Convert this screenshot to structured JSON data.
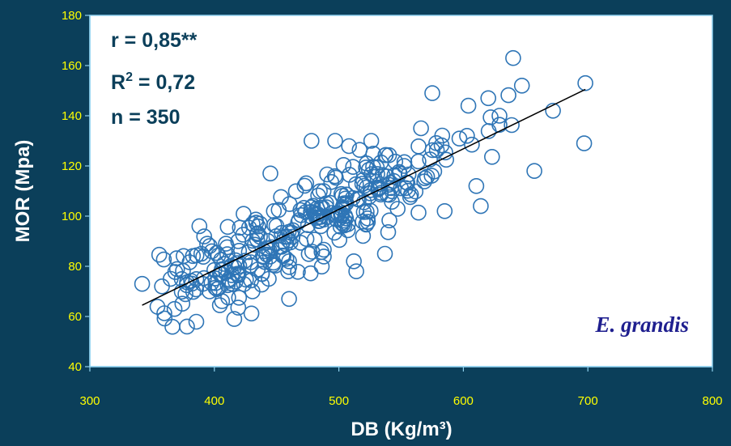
{
  "chart_data": {
    "type": "scatter",
    "xlabel": "DB (Kg/m³)",
    "ylabel": "MOR (Mpa)",
    "xlim": [
      300,
      800
    ],
    "ylim": [
      40,
      180
    ],
    "x_ticks": [
      "300",
      "400",
      "500",
      "600",
      "700",
      "800"
    ],
    "y_ticks": [
      "40",
      "60",
      "80",
      "100",
      "120",
      "140",
      "160",
      "180"
    ],
    "grid": false,
    "annotations": {
      "r": "r = 0,85**",
      "r2_prefix": "R",
      "r2_sup": "2",
      "r2_suffix": " = 0,72",
      "n": "n = 350",
      "species": "E. grandis"
    },
    "trendline": {
      "x": [
        342,
        698
      ],
      "y": [
        64.5,
        150.5
      ]
    },
    "point_count": 350,
    "x": [],
    "y": []
  },
  "colors": {
    "background": "#0b3f5a",
    "plot_area": "#ffffff",
    "plot_border": "#8fd1ef",
    "marker": "#2e75b6",
    "tick_text": "#ffff00",
    "axis_title": "#ffffff",
    "stat_text": "#0b3f5a",
    "species_text": "#1f1f8f"
  }
}
